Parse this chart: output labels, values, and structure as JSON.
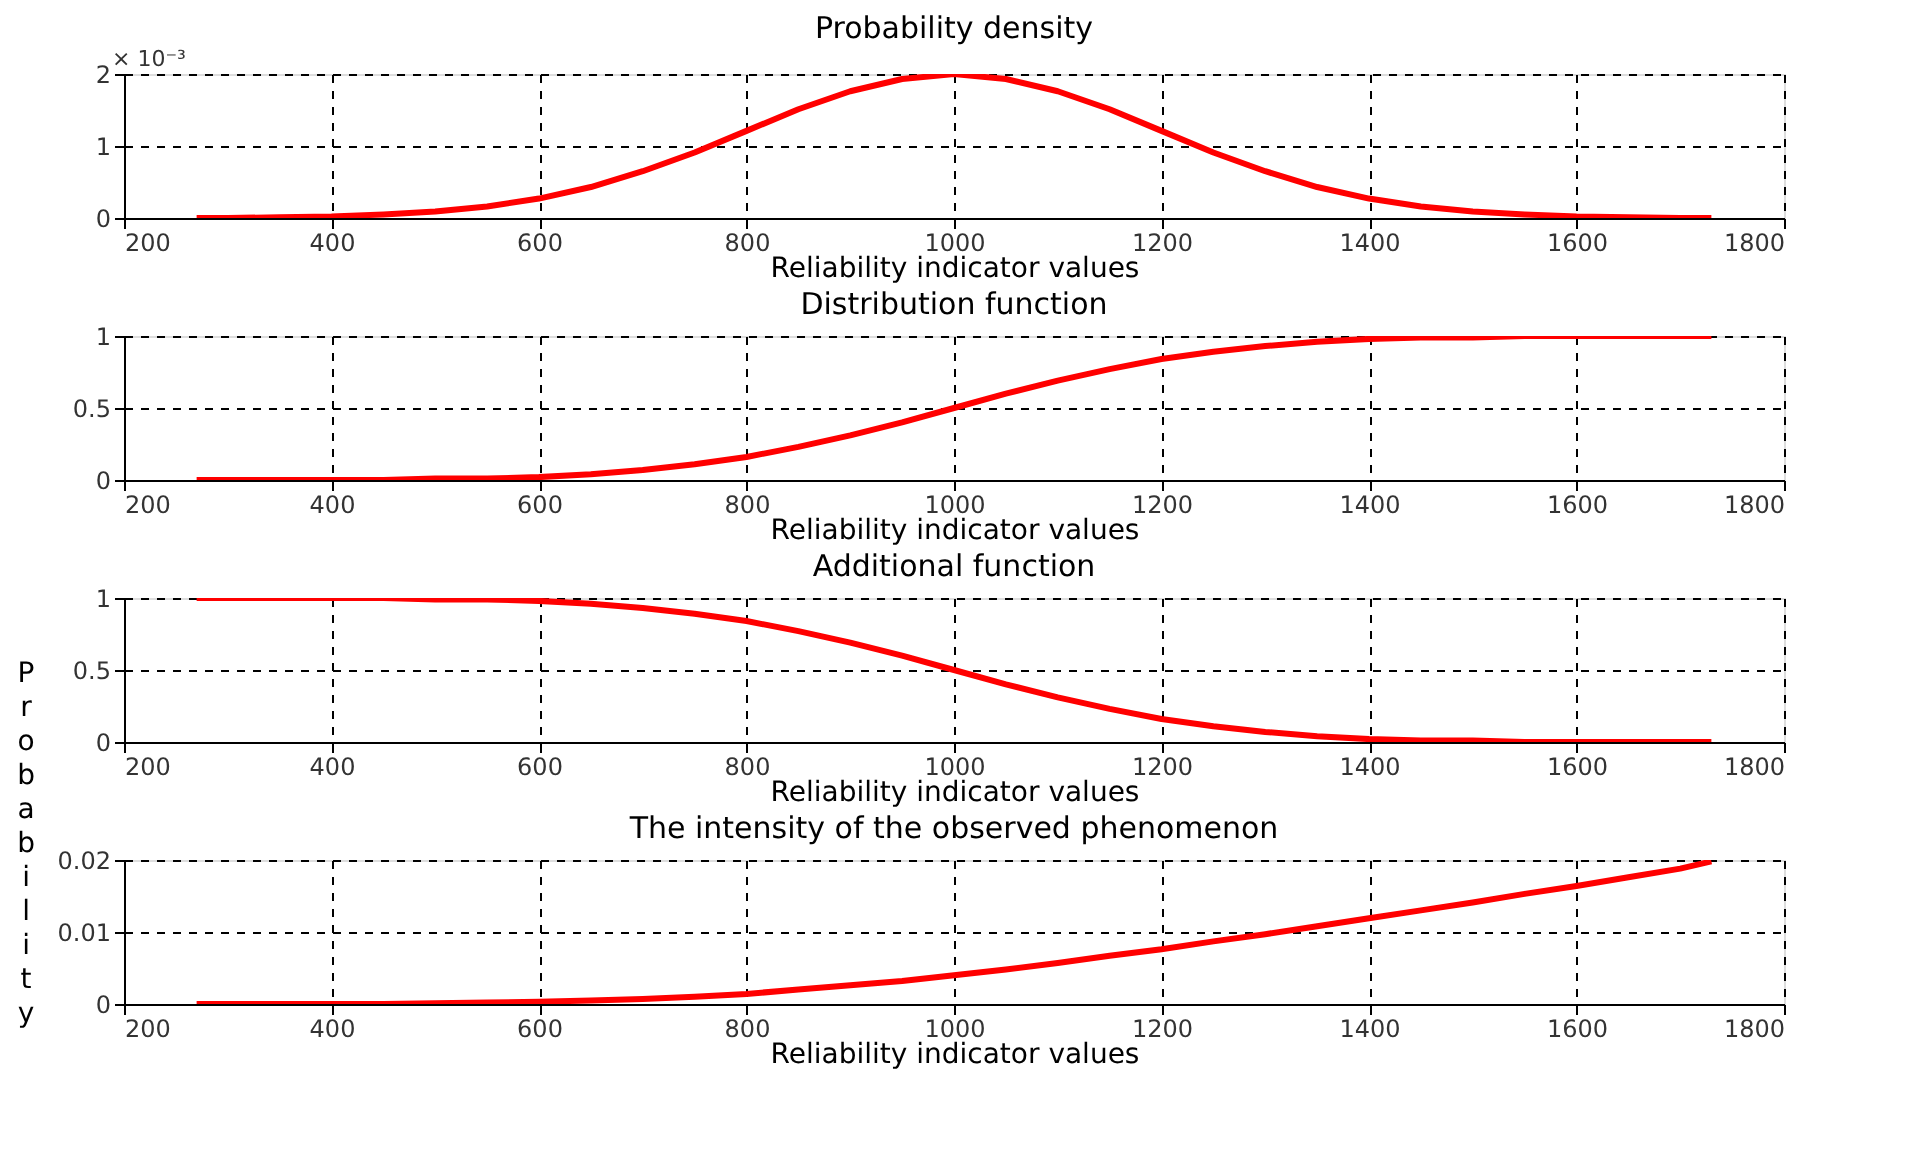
{
  "chart_data": [
    {
      "type": "line",
      "title": "Probability density",
      "xlabel": "Reliability indicator values",
      "annotations": [
        "× 10⁻³"
      ],
      "grid": true,
      "marker": "none",
      "line_style": "solid",
      "x": [
        270,
        300,
        350,
        400,
        450,
        500,
        550,
        600,
        650,
        700,
        750,
        800,
        850,
        900,
        950,
        1000,
        1050,
        1100,
        1150,
        1200,
        1250,
        1300,
        1350,
        1400,
        1450,
        1500,
        1550,
        1600,
        1650,
        1700,
        1730
      ],
      "series": [
        {
          "color": "#ff0000",
          "values": [
            0,
            0,
            0.01,
            0.02,
            0.05,
            0.09,
            0.16,
            0.27,
            0.43,
            0.65,
            0.91,
            1.21,
            1.51,
            1.76,
            1.93,
            2,
            1.93,
            1.76,
            1.51,
            1.21,
            0.91,
            0.65,
            0.43,
            0.27,
            0.16,
            0.09,
            0.05,
            0.02,
            0.01,
            0,
            0
          ]
        }
      ],
      "xlim": [
        200,
        1800
      ],
      "xticks": [
        200,
        400,
        600,
        800,
        1000,
        1200,
        1400,
        1600,
        1800
      ],
      "ylim": [
        0,
        2
      ],
      "yticks": [
        0,
        1,
        2
      ]
    },
    {
      "type": "line",
      "title": "Distribution function",
      "xlabel": "Reliability indicator values",
      "grid": true,
      "marker": "none",
      "line_style": "solid",
      "x": [
        270,
        300,
        350,
        400,
        450,
        500,
        550,
        600,
        650,
        700,
        750,
        800,
        850,
        900,
        950,
        1000,
        1050,
        1100,
        1150,
        1200,
        1250,
        1300,
        1350,
        1400,
        1450,
        1500,
        1550,
        1600,
        1650,
        1700,
        1730
      ],
      "series": [
        {
          "color": "#ff0000",
          "values": [
            0,
            0,
            0,
            0,
            0,
            0.01,
            0.01,
            0.02,
            0.04,
            0.07,
            0.11,
            0.16,
            0.23,
            0.31,
            0.4,
            0.5,
            0.6,
            0.69,
            0.77,
            0.84,
            0.89,
            0.93,
            0.96,
            0.98,
            0.99,
            0.99,
            1,
            1,
            1,
            1,
            1
          ]
        }
      ],
      "xlim": [
        200,
        1800
      ],
      "xticks": [
        200,
        400,
        600,
        800,
        1000,
        1200,
        1400,
        1600,
        1800
      ],
      "ylim": [
        0,
        1
      ],
      "yticks": [
        0,
        0.5,
        1
      ]
    },
    {
      "type": "line",
      "title": "Additional function",
      "xlabel": "Reliability indicator values",
      "ylabel": "Probability",
      "grid": true,
      "marker": "none",
      "line_style": "solid",
      "x": [
        270,
        300,
        350,
        400,
        450,
        500,
        550,
        600,
        650,
        700,
        750,
        800,
        850,
        900,
        950,
        1000,
        1050,
        1100,
        1150,
        1200,
        1250,
        1300,
        1350,
        1400,
        1450,
        1500,
        1550,
        1600,
        1650,
        1700,
        1730
      ],
      "series": [
        {
          "color": "#ff0000",
          "values": [
            1,
            1,
            1,
            1,
            1,
            0.99,
            0.99,
            0.98,
            0.96,
            0.93,
            0.89,
            0.84,
            0.77,
            0.69,
            0.6,
            0.5,
            0.4,
            0.31,
            0.23,
            0.16,
            0.11,
            0.07,
            0.04,
            0.02,
            0.01,
            0.01,
            0,
            0,
            0,
            0,
            0
          ]
        }
      ],
      "xlim": [
        200,
        1800
      ],
      "xticks": [
        200,
        400,
        600,
        800,
        1000,
        1200,
        1400,
        1600,
        1800
      ],
      "ylim": [
        0,
        1
      ],
      "yticks": [
        0,
        0.5,
        1
      ]
    },
    {
      "type": "line",
      "title": "The intensity of the observed phenomenon",
      "xlabel": "Reliability indicator values",
      "grid": true,
      "marker": "none",
      "line_style": "solid",
      "x": [
        270,
        300,
        350,
        400,
        450,
        500,
        550,
        600,
        650,
        700,
        750,
        800,
        850,
        900,
        950,
        1000,
        1050,
        1100,
        1150,
        1200,
        1250,
        1300,
        1350,
        1400,
        1450,
        1500,
        1550,
        1600,
        1650,
        1700,
        1730
      ],
      "series": [
        {
          "color": "#ff0000",
          "values": [
            0,
            0,
            0,
            0,
            0,
            0.0001,
            0.0002,
            0.0003,
            0.0005,
            0.0007,
            0.001,
            0.0014,
            0.002,
            0.0026,
            0.0032,
            0.004,
            0.0048,
            0.0057,
            0.0067,
            0.0076,
            0.0087,
            0.0097,
            0.0108,
            0.0119,
            0.013,
            0.0141,
            0.0153,
            0.0164,
            0.0176,
            0.0188,
            0.0198
          ]
        }
      ],
      "xlim": [
        200,
        1800
      ],
      "xticks": [
        200,
        400,
        600,
        800,
        1000,
        1200,
        1400,
        1600,
        1800
      ],
      "ylim": [
        0,
        0.02
      ],
      "yticks": [
        0,
        0.01,
        0.02
      ]
    }
  ]
}
